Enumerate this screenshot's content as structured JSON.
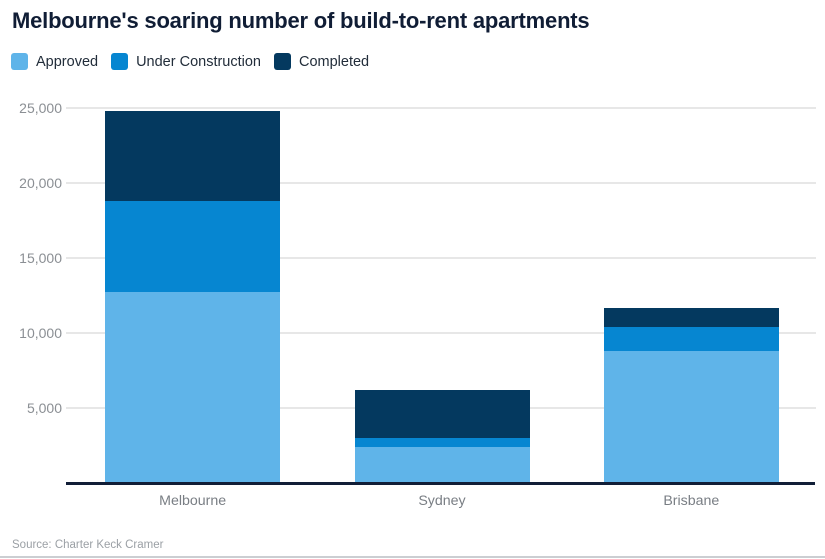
{
  "header": {
    "title": "Melbourne's soaring number of build-to-rent apartments"
  },
  "chart_data": {
    "type": "bar",
    "stacked": true,
    "title": "Melbourne's soaring number of build-to-rent apartments",
    "categories": [
      "Melbourne",
      "Sydney",
      "Brisbane"
    ],
    "series": [
      {
        "name": "Approved",
        "color": "#5fb4e9",
        "values": [
          12700,
          2400,
          8800
        ]
      },
      {
        "name": "Under Construction",
        "color": "#0686d1",
        "values": [
          6100,
          600,
          1600
        ]
      },
      {
        "name": "Completed",
        "color": "#04395f",
        "values": [
          6000,
          3200,
          1300
        ]
      }
    ],
    "xlabel": "",
    "ylabel": "",
    "ylim": [
      0,
      25000
    ],
    "yticks": [
      5000,
      10000,
      15000,
      20000,
      25000
    ],
    "ytick_labels": [
      "5,000",
      "10,000",
      "15,000",
      "20,000",
      "25,000"
    ],
    "grid": true,
    "legend_position": "top-left"
  },
  "footer": {
    "source": "Source: Charter Keck Cramer"
  }
}
